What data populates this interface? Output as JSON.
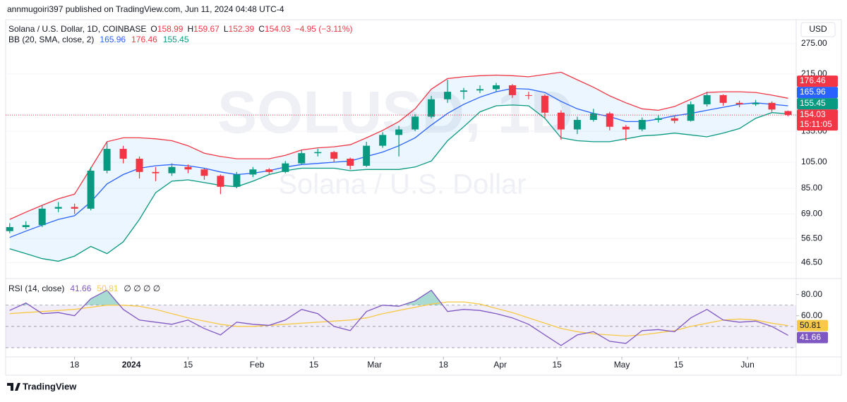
{
  "header": {
    "published": "annmugoiri397 published on TradingView.com, Jun 11, 2024 04:48 UTC-4",
    "currency": "USD",
    "footer": "TradingView"
  },
  "chart_data": [
    {
      "type": "candlestick",
      "title": "Solana / U.S. Dollar, 1D, COINBASE",
      "watermark": "SOLUSD, 1D",
      "watermark_subtitle": "Solana / U.S. Dollar",
      "ohlc_prefixes": [
        "O",
        "H",
        "L",
        "C"
      ],
      "change_label": "−4.95 (−3.11%)",
      "countdown": "15:11:05",
      "up_color": "#089981",
      "down_color": "#f23645",
      "log_scale": true,
      "xlim": [
        "2023-12-01",
        "2024-06-13"
      ],
      "x": [
        "2023-12-02",
        "2023-12-06",
        "2023-12-10",
        "2023-12-14",
        "2023-12-18",
        "2023-12-22",
        "2023-12-26",
        "2023-12-30",
        "2024-01-03",
        "2024-01-07",
        "2024-01-11",
        "2024-01-15",
        "2024-01-19",
        "2024-01-23",
        "2024-01-27",
        "2024-01-31",
        "2024-02-04",
        "2024-02-08",
        "2024-02-12",
        "2024-02-16",
        "2024-02-20",
        "2024-02-24",
        "2024-02-28",
        "2024-03-03",
        "2024-03-07",
        "2024-03-11",
        "2024-03-15",
        "2024-03-19",
        "2024-03-23",
        "2024-03-27",
        "2024-03-31",
        "2024-04-04",
        "2024-04-08",
        "2024-04-12",
        "2024-04-16",
        "2024-04-20",
        "2024-04-24",
        "2024-04-28",
        "2024-05-02",
        "2024-05-06",
        "2024-05-10",
        "2024-05-14",
        "2024-05-18",
        "2024-05-22",
        "2024-05-26",
        "2024-05-30",
        "2024-06-03",
        "2024-06-07",
        "2024-06-11"
      ],
      "open": [
        60,
        62,
        63,
        72,
        73,
        72,
        98,
        117,
        108,
        97,
        96,
        101,
        99,
        94,
        86,
        95,
        99,
        97,
        104,
        113,
        114,
        108,
        102,
        120,
        131,
        137,
        152,
        175,
        186,
        188,
        190,
        196,
        181,
        180,
        157,
        137,
        148,
        156,
        140,
        137,
        148,
        150,
        147,
        168,
        181,
        170,
        168,
        170,
        158.99
      ],
      "high": [
        64,
        65,
        74,
        76,
        75,
        101,
        124,
        120,
        110,
        101,
        104,
        103,
        100,
        95,
        97,
        101,
        100,
        106,
        116,
        117,
        115,
        109,
        124,
        134,
        141,
        155,
        180,
        205,
        192,
        196,
        200,
        198,
        186,
        182,
        160,
        152,
        162,
        158,
        142,
        151,
        154,
        153,
        172,
        186,
        182,
        173,
        174,
        172,
        159.67
      ],
      "low": [
        59,
        61,
        62,
        70,
        69,
        71,
        96,
        104,
        92,
        90,
        94,
        96,
        91,
        81,
        85,
        93,
        95,
        96,
        103,
        110,
        105,
        99,
        101,
        118,
        110,
        135,
        150,
        170,
        175,
        184,
        186,
        177,
        175,
        150,
        126,
        132,
        146,
        136,
        125,
        135,
        145,
        144,
        146,
        165,
        166,
        164,
        166,
        158,
        152.39
      ],
      "close": [
        62,
        63,
        72,
        73,
        72,
        98,
        117,
        108,
        97,
        96,
        101,
        99,
        94,
        86,
        95,
        99,
        97,
        104,
        113,
        114,
        108,
        102,
        120,
        131,
        137,
        152,
        175,
        186,
        188,
        190,
        196,
        181,
        180,
        157,
        137,
        148,
        156,
        140,
        137,
        148,
        150,
        147,
        168,
        181,
        170,
        168,
        170,
        161,
        154.03
      ],
      "indicator": "BB (20, SMA, close, 2)",
      "bands": [
        {
          "color": "#2962ff",
          "values": [
            57,
            60,
            63,
            66,
            68,
            76,
            88,
            95,
            100,
            102,
            103,
            102,
            100,
            97,
            95,
            96,
            98,
            101,
            103,
            104,
            105,
            106,
            110,
            114,
            120,
            128,
            142,
            156,
            168,
            178,
            186,
            191,
            190,
            185,
            172,
            162,
            156,
            152,
            146,
            146,
            149,
            153,
            156,
            160,
            164,
            168,
            170,
            168,
            165.96
          ]
        },
        {
          "color": "#f23645",
          "values": [
            66,
            70,
            74,
            78,
            81,
            100,
            124,
            128,
            128,
            127,
            125,
            120,
            113,
            110,
            108,
            108,
            108,
            111,
            116,
            118,
            119,
            121,
            128,
            136,
            146,
            162,
            190,
            207,
            210,
            212,
            213,
            212,
            210,
            214,
            218,
            205,
            193,
            180,
            170,
            162,
            160,
            165,
            175,
            185,
            186,
            186,
            185,
            181,
            176.46
          ]
        },
        {
          "color": "#089981",
          "values": [
            52,
            50,
            48,
            47,
            49,
            53,
            50,
            55,
            66,
            82,
            90,
            91,
            89,
            87,
            86,
            90,
            95,
            98,
            100,
            100,
            100,
            98,
            99,
            99,
            99,
            101,
            106,
            125,
            140,
            158,
            166,
            167,
            166,
            150,
            128,
            125,
            124,
            124,
            127,
            130,
            131,
            133,
            131,
            129,
            133,
            138,
            150,
            157,
            155.45
          ]
        }
      ],
      "ylim": [
        42,
        330
      ],
      "yticks": [
        {
          "value": 46.5,
          "label": "46.50"
        },
        {
          "value": 56.5,
          "label": "56.50"
        },
        {
          "value": 69,
          "label": "69.00"
        },
        {
          "value": 85,
          "label": "85.00"
        },
        {
          "value": 105,
          "label": "105.00"
        },
        {
          "value": 135,
          "label": "135.00"
        },
        {
          "value": 215,
          "label": "215.00"
        },
        {
          "value": 275,
          "label": "275.00"
        }
      ]
    },
    {
      "type": "line",
      "title": "RSI (14, close)",
      "placeholders": "∅ ∅ ∅ ∅",
      "xlim": [
        "2023-12-01",
        "2024-06-13"
      ],
      "x": [
        "2023-12-02",
        "2023-12-06",
        "2023-12-10",
        "2023-12-14",
        "2023-12-18",
        "2023-12-22",
        "2023-12-26",
        "2023-12-30",
        "2024-01-03",
        "2024-01-07",
        "2024-01-11",
        "2024-01-15",
        "2024-01-19",
        "2024-01-23",
        "2024-01-27",
        "2024-01-31",
        "2024-02-04",
        "2024-02-08",
        "2024-02-12",
        "2024-02-16",
        "2024-02-20",
        "2024-02-24",
        "2024-02-28",
        "2024-03-03",
        "2024-03-07",
        "2024-03-11",
        "2024-03-15",
        "2024-03-19",
        "2024-03-23",
        "2024-03-27",
        "2024-03-31",
        "2024-04-04",
        "2024-04-08",
        "2024-04-12",
        "2024-04-16",
        "2024-04-20",
        "2024-04-24",
        "2024-04-28",
        "2024-05-02",
        "2024-05-06",
        "2024-05-10",
        "2024-05-14",
        "2024-05-18",
        "2024-05-22",
        "2024-05-26",
        "2024-05-30",
        "2024-06-03",
        "2024-06-07",
        "2024-06-11"
      ],
      "series": [
        {
          "color": "#7e57c2",
          "values": [
            65,
            72,
            62,
            63,
            60,
            76,
            84,
            66,
            56,
            54,
            52,
            56,
            48,
            42,
            54,
            52,
            51,
            56,
            66,
            62,
            50,
            46,
            64,
            70,
            69,
            74,
            84,
            64,
            66,
            65,
            62,
            58,
            52,
            42,
            32,
            42,
            45,
            36,
            34,
            46,
            47,
            45,
            58,
            66,
            56,
            54,
            55,
            50,
            41.66
          ]
        },
        {
          "color": "#f7c948",
          "values": [
            62,
            63,
            64,
            65,
            66,
            68,
            70,
            70,
            69,
            66,
            62,
            58,
            55,
            52,
            50,
            50,
            51,
            52,
            53,
            54,
            55,
            56,
            58,
            62,
            65,
            68,
            71,
            73,
            73,
            71,
            67,
            63,
            58,
            53,
            48,
            45,
            43,
            42,
            41,
            42,
            44,
            46,
            50,
            53,
            56,
            57,
            56,
            53,
            50.81
          ]
        }
      ],
      "bands": [
        70,
        50,
        30
      ],
      "ylim": [
        22,
        93
      ],
      "yticks": [
        {
          "value": 60,
          "label": "60.00"
        },
        {
          "value": 80,
          "label": "80.00"
        }
      ],
      "xticks": [
        {
          "value": "2023-12-18",
          "label": "18"
        },
        {
          "value": "2024-01-01",
          "label": "2024"
        },
        {
          "value": "2024-01-15",
          "label": "15"
        },
        {
          "value": "2024-02-01",
          "label": "Feb"
        },
        {
          "value": "2024-02-15",
          "label": "15"
        },
        {
          "value": "2024-03-01",
          "label": "Mar"
        },
        {
          "value": "2024-03-18",
          "label": "18"
        },
        {
          "value": "2024-04-01",
          "label": "Apr"
        },
        {
          "value": "2024-04-15",
          "label": "15"
        },
        {
          "value": "2024-05-01",
          "label": "May"
        },
        {
          "value": "2024-05-15",
          "label": "15"
        },
        {
          "value": "2024-06-01",
          "label": "Jun"
        }
      ]
    }
  ]
}
